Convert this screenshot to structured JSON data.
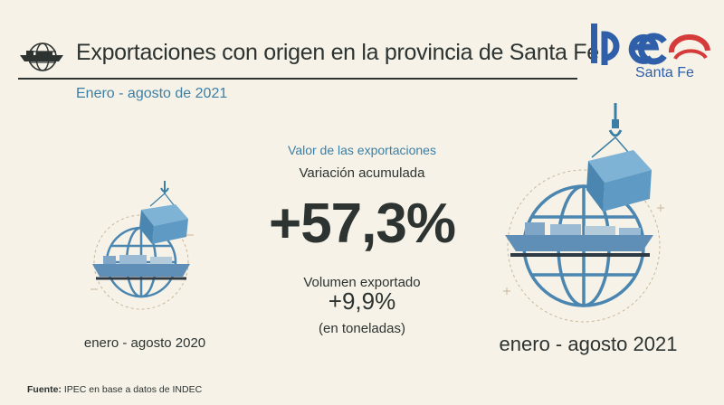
{
  "header": {
    "title": "Exportaciones con origen en la provincia de Santa Fe",
    "subtitle": "Enero - agosto de 2021"
  },
  "logo": {
    "name": "IPEC",
    "region": "Santa Fe",
    "colors": {
      "blue": "#2f5fa8",
      "red": "#d63b3b"
    }
  },
  "stats": {
    "valor_label": "Valor de las exportaciones",
    "variacion_label": "Variación acumulada",
    "variacion_value": "+57,3%",
    "volumen_label": "Volumen exportado",
    "volumen_value": "+9,9%",
    "volumen_unit": "(en toneladas)"
  },
  "periods": {
    "previous": "enero - agosto 2020",
    "current": "enero - agosto 2021"
  },
  "source": {
    "label": "Fuente:",
    "text": "IPEC en base a datos de INDEC"
  },
  "colors": {
    "background": "#f6f2e7",
    "accent_blue": "#3c7fa6",
    "dark_text": "#2c3331"
  },
  "icons": [
    "ship-globe-icon",
    "container-crane-icon"
  ]
}
